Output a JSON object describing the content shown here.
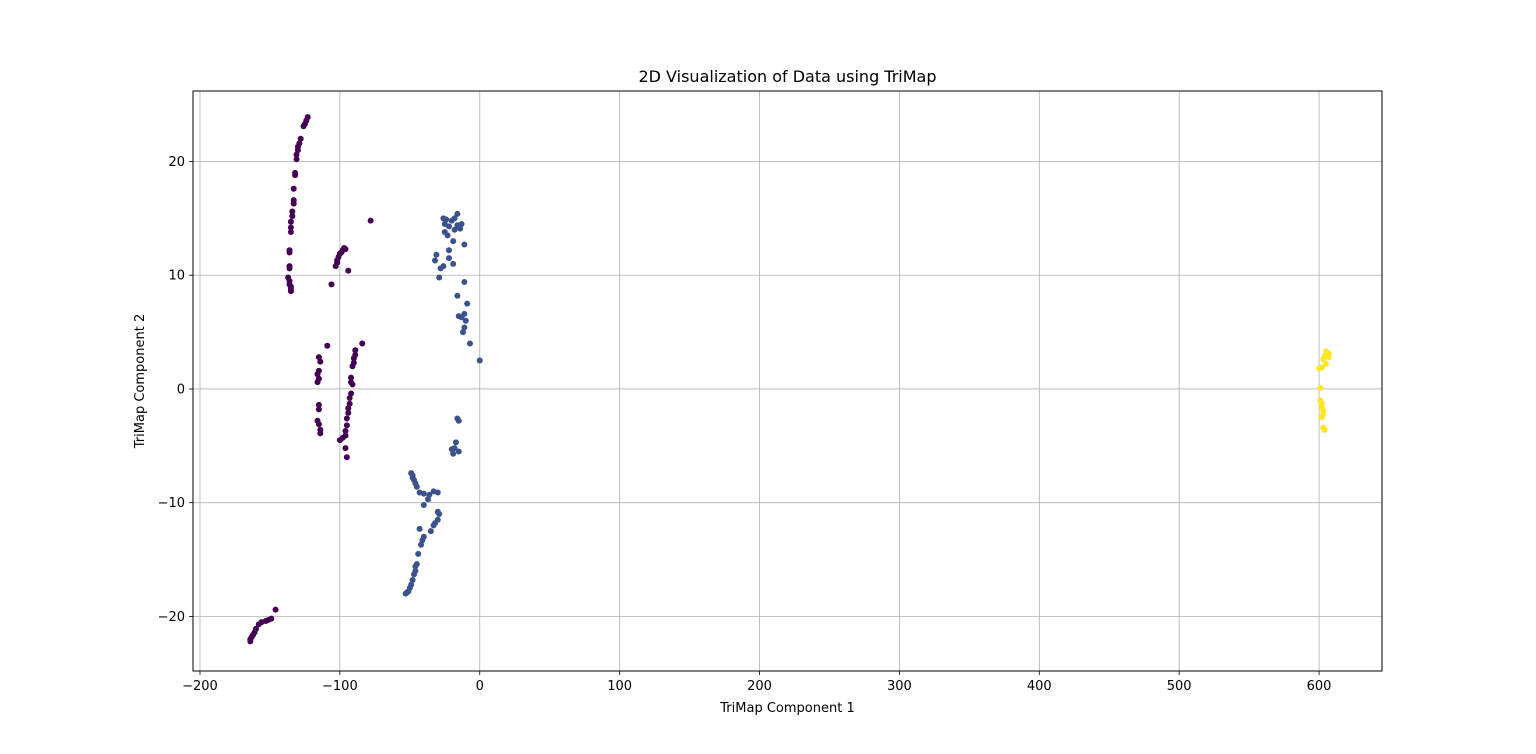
{
  "chart_data": {
    "type": "scatter",
    "title": "2D Visualization of Data using TriMap",
    "xlabel": "TriMap Component 1",
    "ylabel": "TriMap Component 2",
    "xlim": [
      -205,
      645
    ],
    "ylim": [
      -24.8,
      26.2
    ],
    "xticks": [
      -200,
      -100,
      0,
      100,
      200,
      300,
      400,
      500,
      600
    ],
    "xtick_labels": [
      "−200",
      "−100",
      "0",
      "100",
      "200",
      "300",
      "400",
      "500",
      "600"
    ],
    "yticks": [
      -20,
      -10,
      0,
      10,
      20
    ],
    "ytick_labels": [
      "−20",
      "−10",
      "0",
      "10",
      "20"
    ],
    "grid": true,
    "legend": "none",
    "series": [
      {
        "color": "#440154",
        "points": [
          [
            -123,
            23.9
          ],
          [
            -124,
            23.6
          ],
          [
            -125,
            23.3
          ],
          [
            -126,
            23.1
          ],
          [
            -128,
            22.0
          ],
          [
            -129,
            21.6
          ],
          [
            -130,
            21.3
          ],
          [
            -130,
            21.0
          ],
          [
            -131,
            20.6
          ],
          [
            -131,
            20.2
          ],
          [
            -132,
            19.0
          ],
          [
            -132,
            18.8
          ],
          [
            -133,
            17.6
          ],
          [
            -133,
            16.6
          ],
          [
            -133,
            16.3
          ],
          [
            -134,
            15.6
          ],
          [
            -134,
            15.2
          ],
          [
            -135,
            14.7
          ],
          [
            -135,
            14.2
          ],
          [
            -135,
            13.8
          ],
          [
            -136,
            12.2
          ],
          [
            -136,
            12.0
          ],
          [
            -136,
            10.8
          ],
          [
            -136,
            10.6
          ],
          [
            -137,
            9.8
          ],
          [
            -136,
            9.5
          ],
          [
            -136,
            9.2
          ],
          [
            -135,
            9.0
          ],
          [
            -135,
            8.8
          ],
          [
            -135,
            8.6
          ],
          [
            -97,
            12.4
          ],
          [
            -96,
            12.3
          ],
          [
            -98,
            12.2
          ],
          [
            -99,
            12.0
          ],
          [
            -100,
            11.9
          ],
          [
            -101,
            11.6
          ],
          [
            -102,
            11.3
          ],
          [
            -102,
            11.1
          ],
          [
            -103,
            10.8
          ],
          [
            -94,
            10.4
          ],
          [
            -106,
            9.2
          ],
          [
            -78,
            14.8
          ],
          [
            -115,
            1.6
          ],
          [
            -116,
            1.3
          ],
          [
            -115,
            0.9
          ],
          [
            -116,
            0.6
          ],
          [
            -115,
            2.8
          ],
          [
            -114,
            2.4
          ],
          [
            -115,
            -1.4
          ],
          [
            -115,
            -1.8
          ],
          [
            -116,
            -2.8
          ],
          [
            -115,
            -3.1
          ],
          [
            -114,
            -3.6
          ],
          [
            -114,
            -3.9
          ],
          [
            -109,
            3.8
          ],
          [
            -84,
            4.0
          ],
          [
            -89,
            3.4
          ],
          [
            -89,
            3.0
          ],
          [
            -90,
            2.7
          ],
          [
            -90,
            2.3
          ],
          [
            -91,
            2.0
          ],
          [
            -92,
            1.0
          ],
          [
            -92,
            0.6
          ],
          [
            -91,
            0.4
          ],
          [
            -92,
            -0.4
          ],
          [
            -93,
            -0.8
          ],
          [
            -93,
            -1.3
          ],
          [
            -94,
            -1.7
          ],
          [
            -94,
            -2.1
          ],
          [
            -95,
            -2.6
          ],
          [
            -95,
            -3.2
          ],
          [
            -96,
            -3.7
          ],
          [
            -96,
            -4.1
          ],
          [
            -98,
            -4.3
          ],
          [
            -100,
            -4.5
          ],
          [
            -96,
            -5.2
          ],
          [
            -95,
            -6.0
          ],
          [
            -146,
            -19.4
          ],
          [
            -149,
            -20.2
          ],
          [
            -151,
            -20.3
          ],
          [
            -153,
            -20.4
          ],
          [
            -156,
            -20.5
          ],
          [
            -158,
            -20.7
          ],
          [
            -160,
            -21.1
          ],
          [
            -161,
            -21.4
          ],
          [
            -162,
            -21.6
          ],
          [
            -163,
            -21.8
          ],
          [
            -164,
            -22.0
          ],
          [
            -164,
            -22.2
          ]
        ]
      },
      {
        "color": "#3b528b",
        "points": [
          [
            -16,
            15.4
          ],
          [
            -18,
            15.0
          ],
          [
            -20,
            14.8
          ],
          [
            -24,
            14.9
          ],
          [
            -26,
            15.0
          ],
          [
            -25,
            14.5
          ],
          [
            -22,
            14.3
          ],
          [
            -16,
            14.4
          ],
          [
            -13,
            14.5
          ],
          [
            -14,
            14.1
          ],
          [
            -18,
            14.0
          ],
          [
            -25,
            13.8
          ],
          [
            -23,
            13.5
          ],
          [
            -19,
            13.0
          ],
          [
            -11,
            12.7
          ],
          [
            -22,
            12.2
          ],
          [
            -31,
            11.8
          ],
          [
            -22,
            11.5
          ],
          [
            -32,
            11.3
          ],
          [
            -19,
            11.0
          ],
          [
            -26,
            10.8
          ],
          [
            -28,
            10.6
          ],
          [
            -29,
            9.8
          ],
          [
            -11,
            9.4
          ],
          [
            -16,
            8.2
          ],
          [
            -9,
            7.5
          ],
          [
            -11,
            6.6
          ],
          [
            -15,
            6.4
          ],
          [
            -13,
            6.3
          ],
          [
            -10,
            6.0
          ],
          [
            -11,
            5.4
          ],
          [
            -12,
            5.0
          ],
          [
            -7,
            4.0
          ],
          [
            0,
            2.5
          ],
          [
            -16,
            -2.6
          ],
          [
            -15,
            -2.8
          ],
          [
            -17,
            -4.7
          ],
          [
            -18,
            -5.2
          ],
          [
            -20,
            -5.3
          ],
          [
            -15,
            -5.5
          ],
          [
            -19,
            -5.7
          ],
          [
            -49,
            -7.4
          ],
          [
            -48,
            -7.6
          ],
          [
            -48,
            -7.8
          ],
          [
            -47,
            -8.0
          ],
          [
            -46,
            -8.3
          ],
          [
            -45,
            -8.6
          ],
          [
            -43,
            -9.1
          ],
          [
            -40,
            -9.2
          ],
          [
            -36,
            -9.3
          ],
          [
            -33,
            -9.0
          ],
          [
            -30,
            -9.1
          ],
          [
            -37,
            -9.7
          ],
          [
            -40,
            -10.2
          ],
          [
            -30,
            -10.8
          ],
          [
            -29,
            -11.0
          ],
          [
            -30,
            -11.5
          ],
          [
            -32,
            -11.8
          ],
          [
            -33,
            -12.0
          ],
          [
            -35,
            -12.5
          ],
          [
            -43,
            -12.3
          ],
          [
            -40,
            -13.0
          ],
          [
            -41,
            -13.3
          ],
          [
            -42,
            -13.7
          ],
          [
            -44,
            -14.5
          ],
          [
            -45,
            -15.4
          ],
          [
            -46,
            -15.6
          ],
          [
            -46,
            -16.0
          ],
          [
            -47,
            -16.3
          ],
          [
            -48,
            -16.8
          ],
          [
            -49,
            -17.2
          ],
          [
            -50,
            -17.5
          ],
          [
            -51,
            -17.8
          ],
          [
            -52,
            -17.9
          ],
          [
            -53,
            -18.0
          ]
        ]
      },
      {
        "color": "#fde725",
        "points": [
          [
            605,
            3.3
          ],
          [
            607,
            3.1
          ],
          [
            604,
            2.9
          ],
          [
            603,
            2.6
          ],
          [
            607,
            2.8
          ],
          [
            605,
            2.2
          ],
          [
            602,
            1.9
          ],
          [
            600,
            1.8
          ],
          [
            601,
            0.1
          ],
          [
            601,
            -1.0
          ],
          [
            602,
            -1.3
          ],
          [
            602,
            -1.6
          ],
          [
            603,
            -1.9
          ],
          [
            603,
            -2.2
          ],
          [
            602,
            -2.5
          ],
          [
            603,
            -3.4
          ],
          [
            604,
            -3.6
          ]
        ]
      }
    ]
  }
}
